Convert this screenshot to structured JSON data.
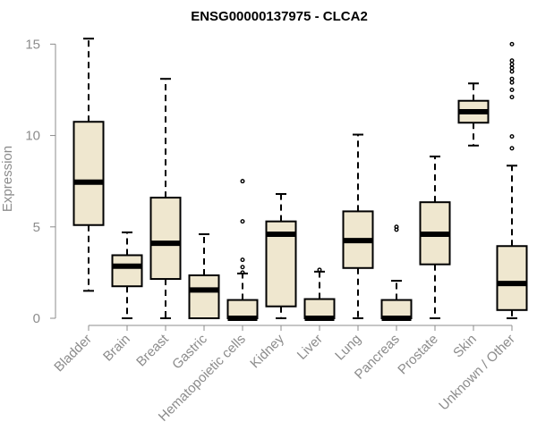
{
  "chart_data": {
    "type": "boxplot",
    "title": "ENSG00000137975 - CLCA2",
    "xlabel": "",
    "ylabel": "Expression",
    "ylim": [
      0,
      15.8
    ],
    "yticks": [
      0,
      5,
      10,
      15
    ],
    "grid": false,
    "box_color": "#efe7cf",
    "axis_color": "#8c8c8c",
    "categories": [
      "Bladder",
      "Brain",
      "Breast",
      "Gastric",
      "Hematopoietic cells",
      "Kidney",
      "Liver",
      "Lung",
      "Pancreas",
      "Prostate",
      "Skin",
      "Unknown / Other"
    ],
    "boxes": [
      {
        "label": "Bladder",
        "whisker_low": 1.5,
        "q1": 5.1,
        "median": 7.45,
        "q3": 10.75,
        "whisker_high": 15.3,
        "outliers": []
      },
      {
        "label": "Brain",
        "whisker_low": 0.0,
        "q1": 1.75,
        "median": 2.85,
        "q3": 3.45,
        "whisker_high": 4.7,
        "outliers": []
      },
      {
        "label": "Breast",
        "whisker_low": 0.0,
        "q1": 2.15,
        "median": 4.1,
        "q3": 6.6,
        "whisker_high": 13.1,
        "outliers": []
      },
      {
        "label": "Gastric",
        "whisker_low": 0.0,
        "q1": 0.0,
        "median": 1.55,
        "q3": 2.35,
        "whisker_high": 4.6,
        "outliers": []
      },
      {
        "label": "Hematopoietic cells",
        "whisker_low": 0.0,
        "q1": 0.0,
        "median": 0.0,
        "q3": 1.0,
        "whisker_high": 2.45,
        "outliers": [
          2.5,
          2.8,
          3.2,
          5.3,
          7.5
        ]
      },
      {
        "label": "Kidney",
        "whisker_low": 0.0,
        "q1": 0.65,
        "median": 4.6,
        "q3": 5.3,
        "whisker_high": 6.8,
        "outliers": []
      },
      {
        "label": "Liver",
        "whisker_low": 0.0,
        "q1": 0.0,
        "median": 0.0,
        "q3": 1.05,
        "whisker_high": 2.55,
        "outliers": [
          2.65
        ]
      },
      {
        "label": "Lung",
        "whisker_low": 0.0,
        "q1": 2.75,
        "median": 4.25,
        "q3": 5.85,
        "whisker_high": 10.05,
        "outliers": []
      },
      {
        "label": "Pancreas",
        "whisker_low": 0.0,
        "q1": 0.0,
        "median": 0.0,
        "q3": 1.0,
        "whisker_high": 2.05,
        "outliers": [
          4.85,
          5.0
        ]
      },
      {
        "label": "Prostate",
        "whisker_low": 0.0,
        "q1": 2.95,
        "median": 4.6,
        "q3": 6.35,
        "whisker_high": 8.85,
        "outliers": []
      },
      {
        "label": "Skin",
        "whisker_low": 9.45,
        "q1": 10.7,
        "median": 11.3,
        "q3": 11.9,
        "whisker_high": 12.85,
        "outliers": []
      },
      {
        "label": "Unknown / Other",
        "whisker_low": 0.0,
        "q1": 0.45,
        "median": 1.9,
        "q3": 3.95,
        "whisker_high": 8.35,
        "outliers": [
          9.3,
          9.95,
          12.1,
          12.5,
          12.9,
          13.1,
          13.5,
          13.7,
          13.9,
          14.1,
          15.0
        ]
      }
    ]
  }
}
